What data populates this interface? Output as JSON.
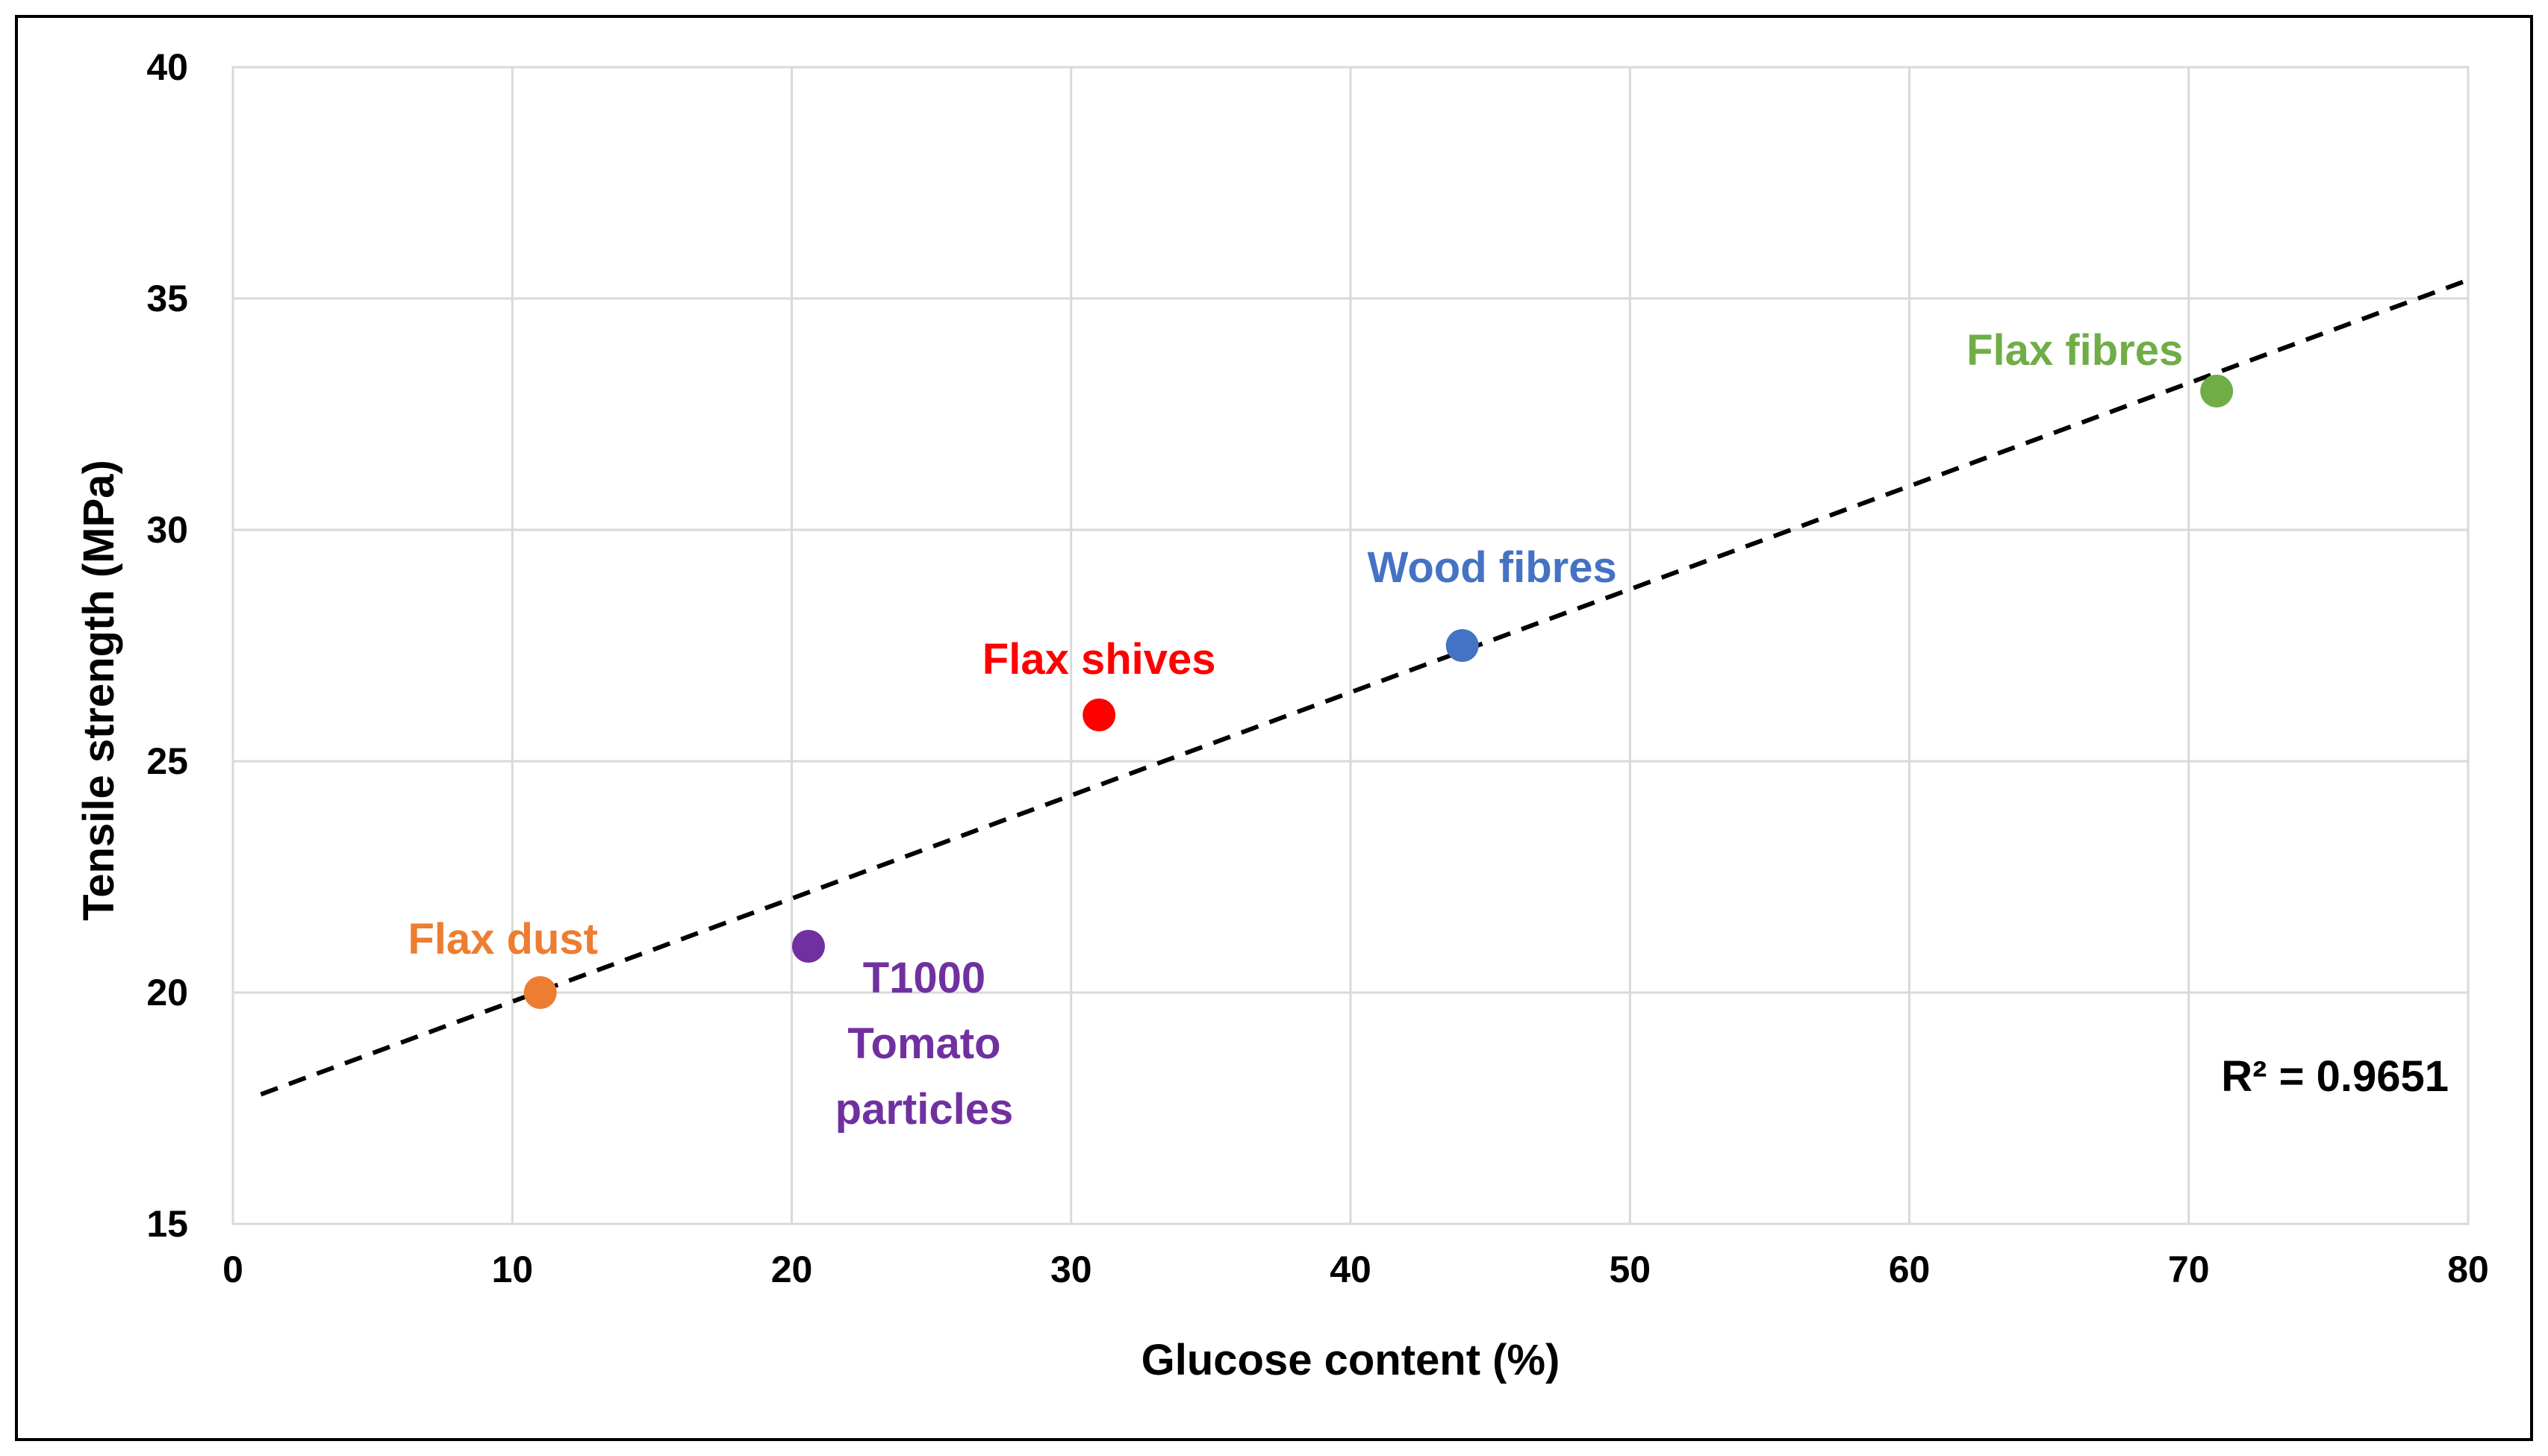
{
  "chart_data": {
    "type": "scatter",
    "title": "",
    "xlabel": "Glucose content (%)",
    "ylabel": "Tensile strength (MPa)",
    "xlim": [
      0,
      80
    ],
    "ylim": [
      15,
      40
    ],
    "xticks": [
      0,
      10,
      20,
      30,
      40,
      50,
      60,
      70,
      80
    ],
    "yticks": [
      15,
      20,
      25,
      30,
      35,
      40
    ],
    "grid": true,
    "legend": "none",
    "points": [
      {
        "name": "Flax dust",
        "label_lines": [
          "Flax dust"
        ],
        "x": 11,
        "y": 20,
        "color": "#ED7D31"
      },
      {
        "name": "T1000 Tomato particles",
        "label_lines": [
          "T1000",
          "Tomato",
          "particles"
        ],
        "x": 20.6,
        "y": 21,
        "color": "#7030A0"
      },
      {
        "name": "Flax shives",
        "label_lines": [
          "Flax shives"
        ],
        "x": 31,
        "y": 26,
        "color": "#FF0000"
      },
      {
        "name": "Wood fibres",
        "label_lines": [
          "Wood fibres"
        ],
        "x": 44,
        "y": 27.5,
        "color": "#4472C4"
      },
      {
        "name": "Flax fibres",
        "label_lines": [
          "Flax fibres"
        ],
        "x": 71,
        "y": 33,
        "color": "#70AD47"
      }
    ],
    "trendline": {
      "type": "linear",
      "x_start": 1,
      "y_start": 17.8,
      "x_end": 80,
      "y_end": 35.4,
      "color": "#000000",
      "style": "dashed"
    },
    "annotations": [
      {
        "text": "R² = 0.9651"
      }
    ]
  }
}
